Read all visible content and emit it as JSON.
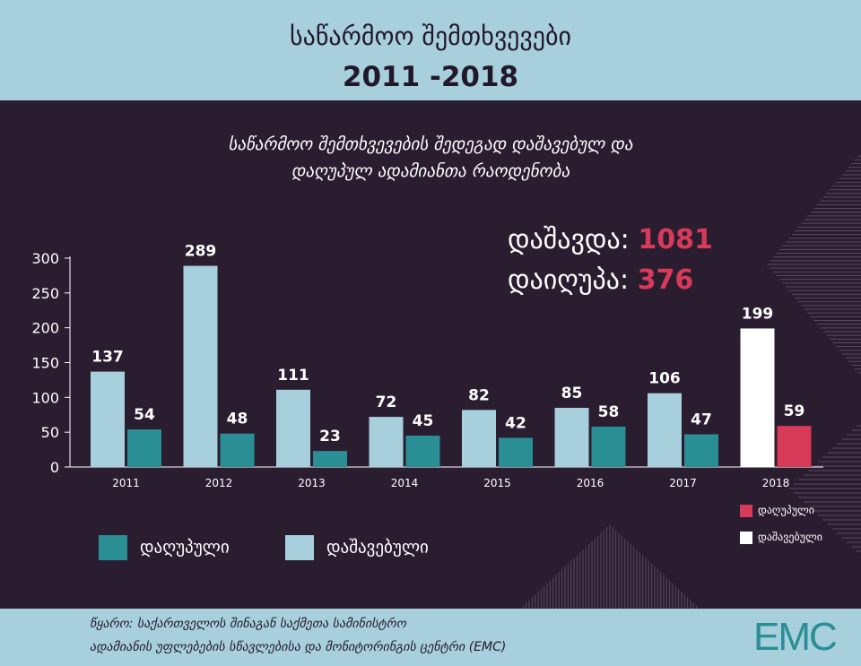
{
  "header": {
    "title": "საწარმოო შემთხვევები",
    "years": "2011 -2018"
  },
  "totals": {
    "injured_label": "დაშავდა:",
    "injured_value": "1081",
    "killed_label": "დაიღუპა:",
    "killed_value": "376"
  },
  "legend": {
    "killed": "დაღუპული",
    "injured": "დაშავებული",
    "killed_2018": "დაღუპული",
    "injured_2018": "დაშავებული"
  },
  "colors": {
    "injured": "#a7cfdc",
    "killed": "#2a8f95",
    "injured_2018": "#ffffff",
    "killed_2018": "#d83a5a"
  },
  "chart_data": {
    "type": "bar",
    "title": "საწარმოო შემთხვევების შედეგად დაშავებულ და\nდაღუპულ ადამიანთა რაოდენობა",
    "categories": [
      "2011",
      "2012",
      "2013",
      "2014",
      "2015",
      "2016",
      "2017",
      "2018"
    ],
    "series": [
      {
        "name": "დაშავებული",
        "values": [
          137,
          289,
          111,
          72,
          82,
          85,
          106,
          199
        ]
      },
      {
        "name": "დაღუპული",
        "values": [
          54,
          48,
          23,
          45,
          42,
          58,
          47,
          59
        ]
      }
    ],
    "yticks": [
      0,
      50,
      100,
      150,
      200,
      250,
      300
    ],
    "ylim": [
      0,
      300
    ],
    "grid": false,
    "legend": "bottom-left"
  },
  "footer": {
    "source_line1": "წყარო: საქართველოს შინაგან საქმეთა სამინისტრო",
    "source_line2": "ადამიანის უფლებების სწავლებისა და მონიტორინგის ცენტრი (EMC)",
    "logo": "EMC"
  }
}
